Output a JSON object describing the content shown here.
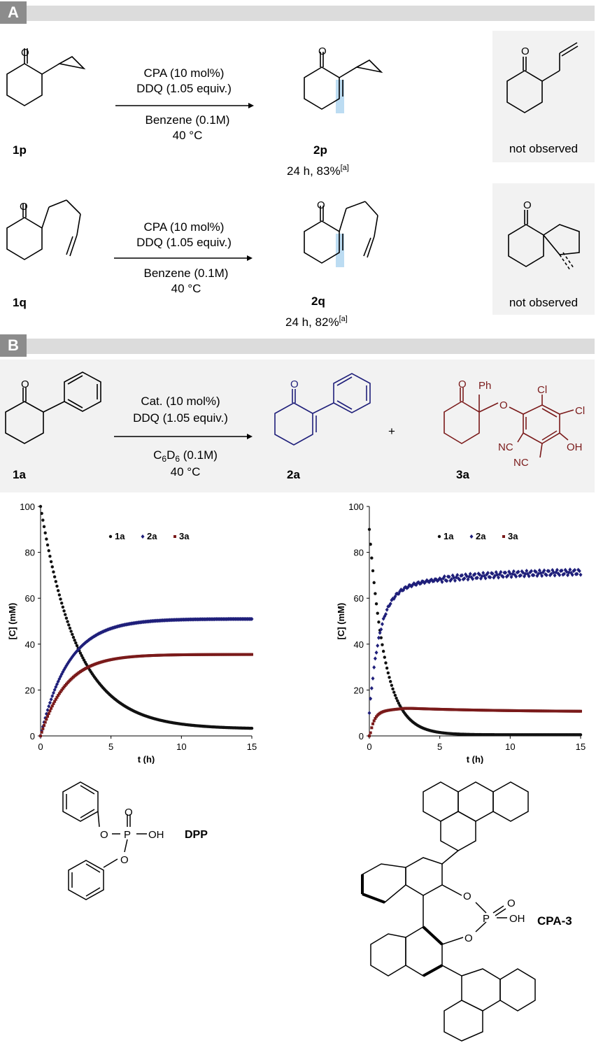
{
  "sections": {
    "a": {
      "letter": "A",
      "bar_color": "#dcdcdc",
      "label_bg": "#8c8c8c"
    },
    "b": {
      "letter": "B",
      "bar_color": "#dcdcdc",
      "label_bg": "#8c8c8c"
    }
  },
  "scheme_a": {
    "row1": {
      "reactant": "1p",
      "cond_line1": "CPA (10 mol%)",
      "cond_line2": "DDQ (1.05 equiv.)",
      "cond_line3": "Benzene (0.1M)",
      "cond_line4": "40 °C",
      "product": "2p",
      "yield": "24 h, 83%",
      "yield_note": "[a]",
      "side_label": "not observed"
    },
    "row2": {
      "reactant": "1q",
      "cond_line1": "CPA (10 mol%)",
      "cond_line2": "DDQ (1.05 equiv.)",
      "cond_line3": "Benzene (0.1M)",
      "cond_line4": "40 °C",
      "product": "2q",
      "yield": "24 h, 82%",
      "yield_note": "[a]",
      "side_label": "not observed"
    }
  },
  "scheme_b": {
    "reactant": "1a",
    "cond_line1": "Cat. (10 mol%)",
    "cond_line2": "DDQ (1.05 equiv.)",
    "cond_solvent_c": "C",
    "cond_solvent_6a": "6",
    "cond_solvent_d": "D",
    "cond_solvent_6b": "6",
    "cond_solvent_rest": " (0.1M)",
    "cond_line4": "40 °C",
    "product": "2a",
    "plus": "+",
    "side_product": "3a",
    "atoms": {
      "o": "O",
      "ph": "Ph",
      "cl": "Cl",
      "nc": "NC",
      "oh": "OH"
    },
    "colors": {
      "product": "#1f1f7a",
      "side_product": "#7a1a1a",
      "panel_bg": "#f2f2f2"
    }
  },
  "chart_data": [
    {
      "type": "scatter",
      "title": "",
      "xlabel": "t (h)",
      "ylabel": "[C] (mM)",
      "xlim": [
        0,
        15
      ],
      "ylim": [
        0,
        100
      ],
      "xticks": [
        0,
        5,
        10,
        15
      ],
      "yticks": [
        0,
        20,
        40,
        60,
        80,
        100
      ],
      "legend_position": "top",
      "series": [
        {
          "name": "1a",
          "color": "#111111",
          "marker": "circle",
          "model": {
            "kind": "decay",
            "c0": 100,
            "cinf": 3,
            "k": 0.38
          }
        },
        {
          "name": "2a",
          "color": "#1f1f7a",
          "marker": "diamond",
          "model": {
            "kind": "rise",
            "c0": 0,
            "cinf": 51,
            "k": 0.5
          }
        },
        {
          "name": "3a",
          "color": "#7a1a1a",
          "marker": "square",
          "model": {
            "kind": "rise",
            "c0": 0,
            "cinf": 35.5,
            "k": 0.55
          }
        }
      ]
    },
    {
      "type": "scatter",
      "title": "",
      "xlabel": "t (h)",
      "ylabel": "[C] (mM)",
      "xlim": [
        0,
        15
      ],
      "ylim": [
        0,
        100
      ],
      "xticks": [
        0,
        5,
        10,
        15
      ],
      "yticks": [
        0,
        20,
        40,
        60,
        80,
        100
      ],
      "legend_position": "top",
      "series": [
        {
          "name": "1a",
          "color": "#111111",
          "marker": "circle",
          "model": {
            "kind": "decay",
            "c0": 90,
            "cinf": 0.5,
            "k": 0.9
          }
        },
        {
          "name": "2a",
          "color": "#1f1f7a",
          "marker": "diamond",
          "model": {
            "kind": "rise2",
            "c0": 10,
            "cinf": 72,
            "k": 0.45
          }
        },
        {
          "name": "3a",
          "color": "#7a1a1a",
          "marker": "square",
          "model": {
            "kind": "hump",
            "peak": 12,
            "tail": 10.5,
            "k": 1.6
          }
        }
      ]
    }
  ],
  "catalysts": {
    "dpp": {
      "label": "DPP",
      "p": "P",
      "o": "O",
      "oh": "OH"
    },
    "cpa3": {
      "label": "CPA-3",
      "p": "P",
      "o": "O",
      "oh": "OH"
    }
  }
}
